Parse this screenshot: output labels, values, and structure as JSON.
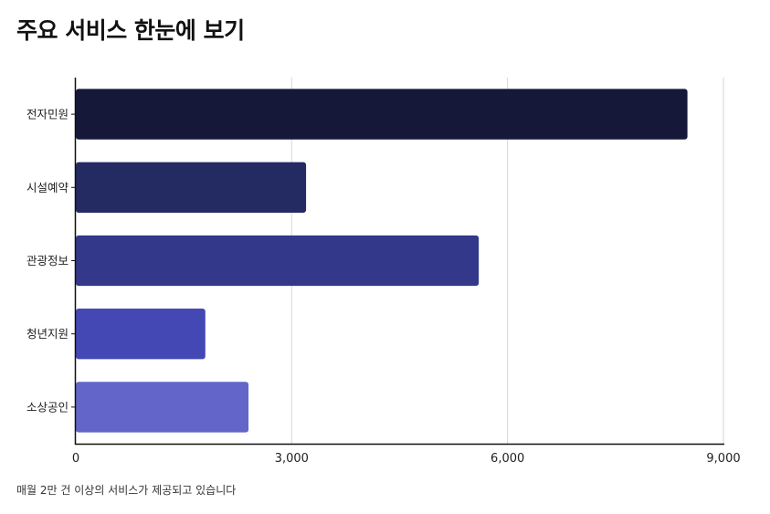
{
  "chart_data": {
    "type": "bar",
    "orientation": "horizontal",
    "title": "주요 서비스 한눈에 보기",
    "caption": "매월 2만 건 이상의 서비스가 제공되고 있습니다",
    "categories": [
      "전자민원",
      "시설예약",
      "관광정보",
      "청년지원",
      "소상공인"
    ],
    "values": [
      8500,
      3200,
      5600,
      1800,
      2400
    ],
    "colors": [
      "#16183a",
      "#242a62",
      "#33388a",
      "#4448b4",
      "#6366c8"
    ],
    "xlim": [
      0,
      9000
    ],
    "xticks": [
      0,
      3000,
      6000,
      9000
    ],
    "xtick_labels": [
      "0",
      "3,000",
      "6,000",
      "9,000"
    ],
    "grid": "vertical",
    "legend": "none"
  }
}
